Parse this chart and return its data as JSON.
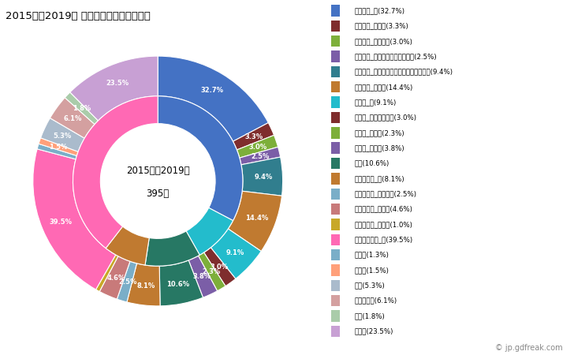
{
  "title": "2015年～2019年 大台町の男性の死因構成",
  "center_line1": "2015年～2019年",
  "center_line2": "395人",
  "outer_segments": [
    {
      "label": "悪性腫瘍_計(32.7%)",
      "value": 32.7,
      "color": "#4472C4"
    },
    {
      "label": "悪性腫瘍_胃がん(3.3%)",
      "value": 3.3,
      "color": "#7F2D2D"
    },
    {
      "label": "悪性腫瘍_大腸がん(3.0%)",
      "value": 3.0,
      "color": "#7DAF3A"
    },
    {
      "label": "悪性腫瘍_肝がん・肝内胆管がん(2.5%)",
      "value": 2.5,
      "color": "#7B5EA7"
    },
    {
      "label": "悪性腫瘍_気管がん・気管支がん・肺がん(9.4%)",
      "value": 9.4,
      "color": "#317E8E"
    },
    {
      "label": "悪性腫瘍_その他(14.4%)",
      "value": 14.4,
      "color": "#C07A30"
    },
    {
      "label": "心疾患_計(9.1%)",
      "value": 9.1,
      "color": "#23BCCC"
    },
    {
      "label": "心疾患_急性心筋梗塞(3.0%)",
      "value": 3.0,
      "color": "#7F2D2D"
    },
    {
      "label": "心疾患_心不全(2.3%)",
      "value": 2.3,
      "color": "#7DAF3A"
    },
    {
      "label": "心疾患_その他(3.8%)",
      "value": 3.8,
      "color": "#7B5EA7"
    },
    {
      "label": "肺炎(10.6%)",
      "value": 10.6,
      "color": "#277864"
    },
    {
      "label": "脳血管疾患_計(8.1%)",
      "value": 8.1,
      "color": "#C07A30"
    },
    {
      "label": "脳血管疾患_脳内出血(2.5%)",
      "value": 2.5,
      "color": "#7AAEC8"
    },
    {
      "label": "脳血管疾患_脳梗塞(4.6%)",
      "value": 4.6,
      "color": "#C87A7A"
    },
    {
      "label": "脳血管疾患_その他(1.0%)",
      "value": 1.0,
      "color": "#C8A828"
    },
    {
      "label": "その他の死因_計(39.5%)",
      "value": 39.5,
      "color": "#FF69B4"
    },
    {
      "label": "肝疾患(1.3%)",
      "value": 1.3,
      "color": "#7AAEC8"
    },
    {
      "label": "腎不全(1.5%)",
      "value": 1.5,
      "color": "#FFA07A"
    },
    {
      "label": "老衰(5.3%)",
      "value": 5.3,
      "color": "#AABBCC"
    },
    {
      "label": "不慮の事故(6.1%)",
      "value": 6.1,
      "color": "#D4A0A0"
    },
    {
      "label": "自殺(1.8%)",
      "value": 1.8,
      "color": "#AACCAA"
    },
    {
      "label": "その他(23.5%)",
      "value": 23.5,
      "color": "#C8A0D4"
    }
  ],
  "inner_segments": [
    {
      "label": "悪性腫瘍_計",
      "value": 32.7,
      "color": "#4472C4"
    },
    {
      "label": "心疾患_計",
      "value": 9.1,
      "color": "#23BCCC"
    },
    {
      "label": "肺炎",
      "value": 10.6,
      "color": "#277864"
    },
    {
      "label": "脳血管疾患_計",
      "value": 8.1,
      "color": "#C07A30"
    },
    {
      "label": "その他の死因_計",
      "value": 39.5,
      "color": "#FF69B4"
    }
  ],
  "background_color": "#FFFFFF",
  "watermark": "© jp.gdfreak.com",
  "label_min_pct": 1.5
}
